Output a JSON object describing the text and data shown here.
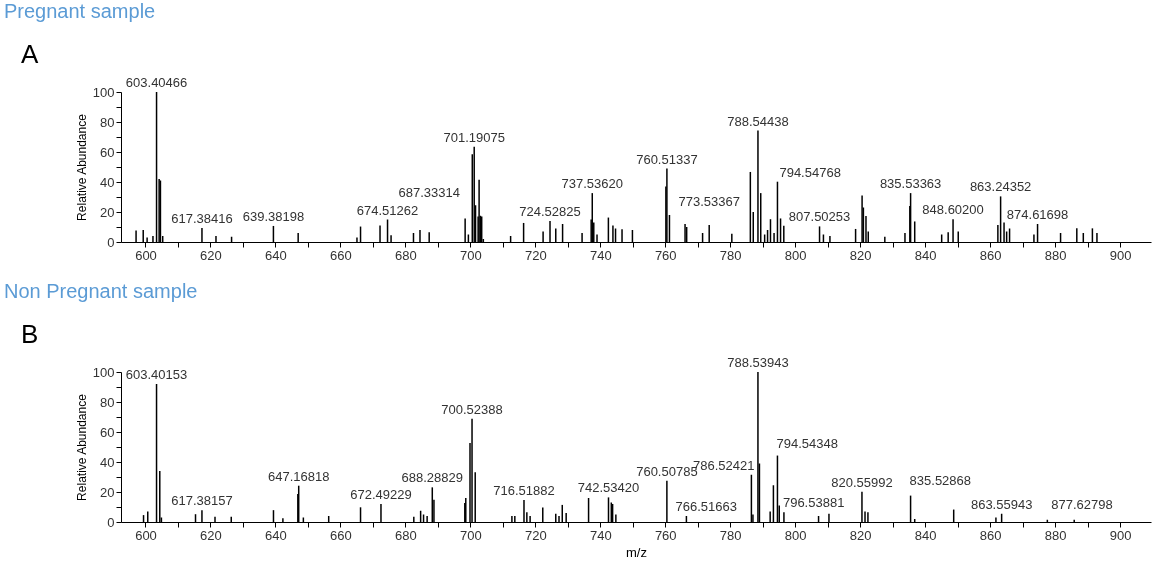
{
  "chart_data": [
    {
      "type": "bar",
      "title": "Pregnant sample",
      "ylabel": "Relative Abundance",
      "color": "#000000",
      "xlim": [
        594,
        908
      ],
      "ylim": [
        0,
        100
      ],
      "xticks": [
        {
          "value": 600,
          "label": "600"
        },
        {
          "value": 610,
          "label": null
        },
        {
          "value": 620,
          "label": "620"
        },
        {
          "value": 630,
          "label": null
        },
        {
          "value": 640,
          "label": "640"
        },
        {
          "value": 650,
          "label": null
        },
        {
          "value": 660,
          "label": "660"
        },
        {
          "value": 670,
          "label": null
        },
        {
          "value": 680,
          "label": "680"
        },
        {
          "value": 690,
          "label": null
        },
        {
          "value": 700,
          "label": "700"
        },
        {
          "value": 710,
          "label": null
        },
        {
          "value": 720,
          "label": "720"
        },
        {
          "value": 730,
          "label": null
        },
        {
          "value": 740,
          "label": "740"
        },
        {
          "value": 750,
          "label": null
        },
        {
          "value": 760,
          "label": "760"
        },
        {
          "value": 770,
          "label": null
        },
        {
          "value": 780,
          "label": "780"
        },
        {
          "value": 790,
          "label": null
        },
        {
          "value": 800,
          "label": "800"
        },
        {
          "value": 810,
          "label": null
        },
        {
          "value": 820,
          "label": "820"
        },
        {
          "value": 830,
          "label": null
        },
        {
          "value": 840,
          "label": "840"
        },
        {
          "value": 850,
          "label": null
        },
        {
          "value": 860,
          "label": "860"
        },
        {
          "value": 870,
          "label": null
        },
        {
          "value": 880,
          "label": "880"
        },
        {
          "value": 890,
          "label": null
        },
        {
          "value": 900,
          "label": "900"
        }
      ],
      "yticks": [
        {
          "value": 0,
          "label": "0"
        },
        {
          "value": 10,
          "label": null
        },
        {
          "value": 20,
          "label": "20"
        },
        {
          "value": 30,
          "label": null
        },
        {
          "value": 40,
          "label": "40"
        },
        {
          "value": 50,
          "label": null
        },
        {
          "value": 60,
          "label": "60"
        },
        {
          "value": 70,
          "label": null
        },
        {
          "value": 80,
          "label": "80"
        },
        {
          "value": 90,
          "label": null
        },
        {
          "value": 100,
          "label": "100"
        }
      ],
      "x": [
        597.1,
        599.3,
        600.5,
        602.3,
        603.40466,
        604.2,
        604.6,
        605.3,
        617.38416,
        621.7,
        626.5,
        639.38198,
        647.0,
        665.1,
        666.2,
        672.2,
        674.51262,
        675.6,
        682.5,
        684.5,
        687.33314,
        698.4,
        699.4,
        700.6,
        701.19075,
        701.6,
        702.4,
        702.7,
        703.1,
        703.5,
        704.0,
        712.4,
        716.4,
        722.4,
        724.52825,
        726.3,
        728.4,
        734.4,
        737.2,
        737.5362,
        738.0,
        739.0,
        742.5,
        743.9,
        744.7,
        746.7,
        749.9,
        760.2,
        760.51337,
        761.3,
        766.1,
        766.6,
        771.5,
        773.53367,
        780.5,
        786.2,
        787.1,
        788.54438,
        789.4,
        790.6,
        791.5,
        792.4,
        793.5,
        794.54768,
        795.5,
        796.5,
        807.50253,
        808.7,
        810.7,
        818.6,
        820.6,
        821.0,
        821.8,
        822.5,
        827.6,
        833.8,
        835.3,
        835.53363,
        836.8,
        845.1,
        847.1,
        848.602,
        850.2,
        862.4,
        863.24352,
        864.3,
        865.1,
        866.0,
        873.5,
        874.61698,
        881.7,
        886.7,
        888.7,
        891.5,
        892.9
      ],
      "values": [
        7.6,
        8,
        3,
        4,
        100,
        42,
        41,
        4,
        9.4,
        4,
        3.5,
        10.7,
        6,
        3,
        10.3,
        11,
        15,
        4.5,
        6,
        8,
        6.5,
        15.7,
        5,
        58.5,
        63.5,
        24.5,
        17,
        41.5,
        17.5,
        17,
        2,
        4,
        12.7,
        7,
        14,
        9,
        12,
        6,
        15,
        32.6,
        13,
        5,
        16.3,
        11,
        9,
        8.5,
        8,
        37,
        49,
        18,
        12,
        10,
        6,
        11.3,
        5.5,
        46.7,
        20,
        74.3,
        32.6,
        5,
        8,
        15.2,
        6,
        40.2,
        15.7,
        10.9,
        10.4,
        5,
        4,
        8.7,
        31,
        23,
        17.4,
        7,
        3.5,
        6,
        24,
        32.6,
        13.7,
        5,
        6.5,
        15.2,
        7,
        11.3,
        30.4,
        13,
        7,
        9,
        5,
        12,
        6,
        9.1,
        6,
        9.1,
        6
      ],
      "annotations": [
        "A",
        {
          "text": "603.40466",
          "x": 603.40466,
          "y": 100
        },
        {
          "text": "617.38416",
          "x": 617.38416,
          "y": 9.4
        },
        {
          "text": "639.38198",
          "x": 639.38198,
          "y": 10.7
        },
        {
          "text": "674.51262",
          "x": 674.51262,
          "y": 15
        },
        {
          "text": "687.33314",
          "x": 687.33314,
          "y": 6.5
        },
        {
          "text": "701.19075",
          "x": 701.19075,
          "y": 63.5
        },
        {
          "text": "724.52825",
          "x": 724.52825,
          "y": 14
        },
        {
          "text": "737.53620",
          "x": 737.5362,
          "y": 32.6
        },
        {
          "text": "760.51337",
          "x": 760.51337,
          "y": 49
        },
        {
          "text": "773.53367",
          "x": 773.53367,
          "y": 11.3
        },
        {
          "text": "788.54438",
          "x": 788.54438,
          "y": 74.3
        },
        {
          "text": "794.54768",
          "x": 794.54768,
          "y": 40.2
        },
        {
          "text": "807.50253",
          "x": 807.50253,
          "y": 10.4
        },
        {
          "text": "835.53363",
          "x": 835.53363,
          "y": 32.6
        },
        {
          "text": "848.60200",
          "x": 848.602,
          "y": 15.2
        },
        {
          "text": "863.24352",
          "x": 863.24352,
          "y": 30.4
        },
        {
          "text": "874.61698",
          "x": 874.61698,
          "y": 12
        }
      ]
    },
    {
      "type": "bar",
      "title": "Non Pregnant sample",
      "ylabel": "Relative Abundance",
      "xlabel": "m/z",
      "color": "#000000",
      "xlim": [
        594,
        908
      ],
      "ylim": [
        0,
        100
      ],
      "xticks": [
        {
          "value": 600,
          "label": "600"
        },
        {
          "value": 610,
          "label": null
        },
        {
          "value": 620,
          "label": "620"
        },
        {
          "value": 630,
          "label": null
        },
        {
          "value": 640,
          "label": "640"
        },
        {
          "value": 650,
          "label": null
        },
        {
          "value": 660,
          "label": "660"
        },
        {
          "value": 670,
          "label": null
        },
        {
          "value": 680,
          "label": "680"
        },
        {
          "value": 690,
          "label": null
        },
        {
          "value": 700,
          "label": "700"
        },
        {
          "value": 710,
          "label": null
        },
        {
          "value": 720,
          "label": "720"
        },
        {
          "value": 730,
          "label": null
        },
        {
          "value": 740,
          "label": "740"
        },
        {
          "value": 750,
          "label": null
        },
        {
          "value": 760,
          "label": "760"
        },
        {
          "value": 770,
          "label": null
        },
        {
          "value": 780,
          "label": "780"
        },
        {
          "value": 790,
          "label": null
        },
        {
          "value": 800,
          "label": "800"
        },
        {
          "value": 810,
          "label": null
        },
        {
          "value": 820,
          "label": "820"
        },
        {
          "value": 830,
          "label": null
        },
        {
          "value": 840,
          "label": "840"
        },
        {
          "value": 850,
          "label": null
        },
        {
          "value": 860,
          "label": "860"
        },
        {
          "value": 870,
          "label": null
        },
        {
          "value": 880,
          "label": "880"
        },
        {
          "value": 890,
          "label": null
        },
        {
          "value": 900,
          "label": "900"
        }
      ],
      "yticks": [
        {
          "value": 0,
          "label": "0"
        },
        {
          "value": 10,
          "label": null
        },
        {
          "value": 20,
          "label": "20"
        },
        {
          "value": 30,
          "label": null
        },
        {
          "value": 40,
          "label": "40"
        },
        {
          "value": 50,
          "label": null
        },
        {
          "value": 60,
          "label": "60"
        },
        {
          "value": 70,
          "label": null
        },
        {
          "value": 80,
          "label": "80"
        },
        {
          "value": 90,
          "label": null
        },
        {
          "value": 100,
          "label": "100"
        }
      ],
      "x": [
        599.4,
        600.7,
        603.40153,
        604.4,
        604.9,
        615.4,
        617.38157,
        621.4,
        626.4,
        639.4,
        642.3,
        646.9,
        647.16818,
        648.6,
        656.4,
        666.2,
        672.49229,
        682.6,
        684.7,
        685.6,
        686.7,
        688.28829,
        688.8,
        698.3,
        698.6,
        699.9,
        700.52388,
        701.5,
        712.8,
        713.7,
        716.51882,
        717.4,
        718.4,
        722.3,
        726.3,
        727.3,
        728.3,
        729.5,
        736.4,
        742.5342,
        743.4,
        743.8,
        744.8,
        760.50785,
        766.51663,
        786.52421,
        787.0,
        788.53943,
        789.0,
        792.3,
        793.3,
        794.54348,
        795.1,
        796.53881,
        807.2,
        810.4,
        820.55992,
        821.5,
        822.4,
        835.52868,
        836.8,
        848.8,
        861.8,
        863.55943,
        877.62798,
        885.9
      ],
      "values": [
        4.6,
        7,
        92,
        34,
        3,
        5.2,
        7.9,
        3.5,
        3.5,
        7.9,
        2.5,
        18.6,
        24.2,
        3,
        4,
        9.8,
        12,
        3.5,
        7.5,
        5,
        4,
        23.1,
        14.8,
        12.7,
        16,
        52.6,
        68.8,
        33.2,
        4,
        4,
        14.6,
        6.5,
        4,
        9.6,
        5.5,
        4,
        11.4,
        6,
        16,
        16.4,
        13,
        12,
        5,
        27.5,
        4,
        31.5,
        5,
        100,
        39,
        7,
        24.5,
        44.3,
        11,
        6.5,
        4,
        5.5,
        20.2,
        7,
        6.5,
        17.6,
        2,
        8.3,
        3,
        5.5,
        1.5,
        1.5
      ],
      "annotations": [
        "B",
        {
          "text": "603.40153",
          "x": 603.40153,
          "y": 92
        },
        {
          "text": "617.38157",
          "x": 617.38157,
          "y": 7.9
        },
        {
          "text": "647.16818",
          "x": 647.16818,
          "y": 24.2
        },
        {
          "text": "672.49229",
          "x": 672.49229,
          "y": 12
        },
        {
          "text": "688.28829",
          "x": 688.28829,
          "y": 23.1
        },
        {
          "text": "700.52388",
          "x": 700.52388,
          "y": 68.8
        },
        {
          "text": "716.51882",
          "x": 716.51882,
          "y": 14.6
        },
        {
          "text": "742.53420",
          "x": 742.5342,
          "y": 16.4
        },
        {
          "text": "760.50785",
          "x": 760.50785,
          "y": 27.5
        },
        {
          "text": "766.51663",
          "x": 766.51663,
          "y": 4
        },
        {
          "text": "786.52421",
          "x": 786.52421,
          "y": 31.5
        },
        {
          "text": "788.53943",
          "x": 788.53943,
          "y": 100
        },
        {
          "text": "794.54348",
          "x": 794.54348,
          "y": 44.3
        },
        {
          "text": "796.53881",
          "x": 796.53881,
          "y": 6.5
        },
        {
          "text": "820.55992",
          "x": 820.55992,
          "y": 20.2
        },
        {
          "text": "835.52868",
          "x": 835.52868,
          "y": 17.6
        },
        {
          "text": "863.55943",
          "x": 863.55943,
          "y": 5.5
        },
        {
          "text": "877.62798",
          "x": 877.62798,
          "y": 1.5
        }
      ]
    }
  ]
}
